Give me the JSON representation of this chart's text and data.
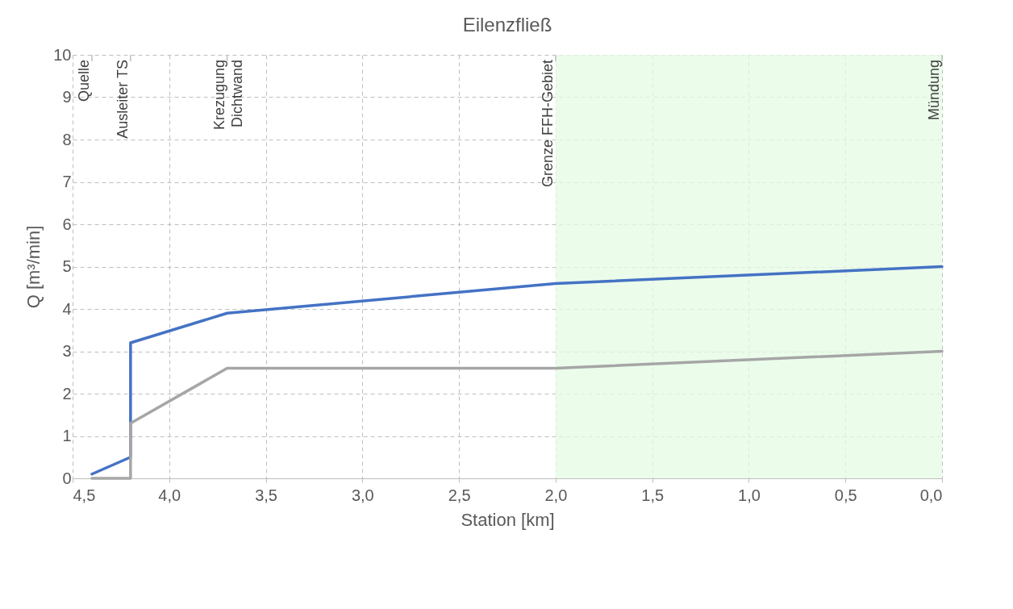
{
  "chart_data": {
    "type": "line",
    "title": "Eilenzfließ",
    "xlabel": "Station [km]",
    "ylabel": "Q [m³/min]",
    "xlim": [
      4.5,
      0.0
    ],
    "xticks": [
      {
        "value": 4.5,
        "label": "4,5"
      },
      {
        "value": 4.0,
        "label": "4,0"
      },
      {
        "value": 3.5,
        "label": "3,5"
      },
      {
        "value": 3.0,
        "label": "3,0"
      },
      {
        "value": 2.5,
        "label": "2,5"
      },
      {
        "value": 2.0,
        "label": "2,0"
      },
      {
        "value": 1.5,
        "label": "1,5"
      },
      {
        "value": 1.0,
        "label": "1,0"
      },
      {
        "value": 0.5,
        "label": "0,5"
      },
      {
        "value": 0.0,
        "label": "0,0"
      }
    ],
    "ylim": [
      0,
      10
    ],
    "yticks": [
      0,
      1,
      2,
      3,
      4,
      5,
      6,
      7,
      8,
      9,
      10
    ],
    "grid": true,
    "line_style": "solid",
    "marker": "none",
    "series": [
      {
        "color": "#4472c4",
        "x": [
          4.4,
          4.2,
          4.2,
          3.7,
          2.0,
          0.0
        ],
        "values": [
          0.1,
          0.5,
          3.2,
          3.9,
          4.6,
          5.0
        ]
      },
      {
        "color": "#a6a6a6",
        "x": [
          4.4,
          4.2,
          4.2,
          3.7,
          2.0,
          0.0
        ],
        "values": [
          0,
          0,
          1.3,
          2.6,
          2.6,
          3.0
        ]
      }
    ],
    "ref_lines": [
      {
        "axis": "x",
        "value": 4.4,
        "label": "Quelle"
      },
      {
        "axis": "x",
        "value": 4.2,
        "label": "Ausleiter TS"
      },
      {
        "axis": "x",
        "value": 3.7,
        "label": "Krezugung\nDichtwand"
      },
      {
        "axis": "x",
        "value": 2.0,
        "label": "Grenze FFH-Gebiet"
      },
      {
        "axis": "x",
        "value": 0.0,
        "label": "Mündung"
      }
    ],
    "bands": [
      {
        "axis": "x",
        "from": 2.0,
        "to": 0.0,
        "color": "#e4fbe4"
      }
    ]
  }
}
